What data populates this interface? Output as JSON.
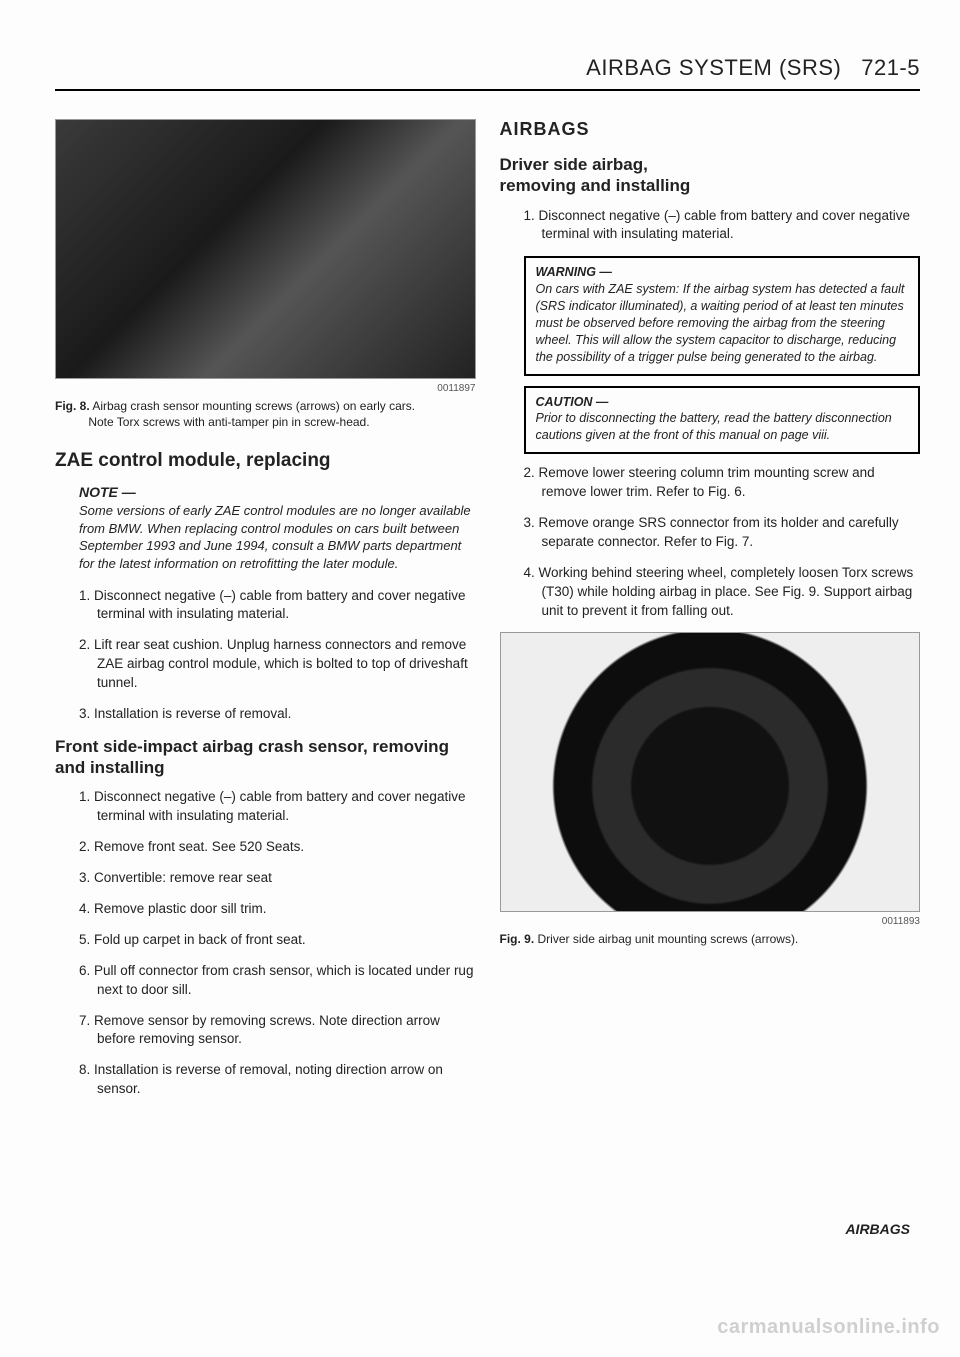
{
  "header": {
    "title": "AIRBAG SYSTEM (SRS)",
    "page": "721-5"
  },
  "left": {
    "fig8": {
      "id": "0011897",
      "label": "Fig. 8.",
      "caption_main": "Airbag crash sensor mounting screws (arrows) on early cars.",
      "caption_sub": "Note Torx screws with anti-tamper pin in screw-head."
    },
    "zae_heading": "ZAE control module, replacing",
    "note_label": "NOTE —",
    "note_body": "Some versions of early ZAE control modules are no longer available from BMW. When replacing control modules on cars built between September 1993 and June 1994, consult a BMW parts department for the latest information on retrofitting the later module.",
    "zae_steps": [
      "1. Disconnect negative (–) cable from battery and cover negative terminal with insulating material.",
      "2. Lift rear seat cushion. Unplug harness connectors and remove ZAE airbag control module, which is bolted to top of driveshaft tunnel.",
      "3. Installation is reverse of removal."
    ],
    "crash_heading": "Front side-impact airbag crash sensor, removing and installing",
    "crash_steps": [
      "1. Disconnect negative (–) cable from battery and cover negative terminal with insulating material.",
      "2. Remove front seat. See 520 Seats.",
      "3. Convertible: remove rear seat",
      "4. Remove plastic door sill trim.",
      "5. Fold up carpet in back of front seat.",
      "6. Pull off connector from crash sensor, which is located under rug next to door sill.",
      "7. Remove sensor by removing screws. Note direction arrow before removing sensor.",
      "8. Installation is reverse of removal, noting direction arrow on sensor."
    ]
  },
  "right": {
    "airbags_label": "AIRBAGS",
    "driver_heading_l1": "Driver side airbag,",
    "driver_heading_l2": "removing and installing",
    "step1": "1. Disconnect negative (–) cable from battery and cover negative terminal with insulating material.",
    "warning": {
      "title": "WARNING —",
      "body": "On cars with ZAE system: If the airbag system has detected a fault (SRS indicator illuminated), a waiting period of at least ten minutes must be observed before removing the airbag from the steering wheel. This will allow the system capacitor to discharge, reducing the possibility of a trigger pulse being generated to the airbag."
    },
    "caution": {
      "title": "CAUTION —",
      "body": "Prior to disconnecting the battery, read the battery disconnection cautions given at the front of this manual on page viii."
    },
    "steps_rest": [
      "2. Remove lower steering column trim mounting screw and remove lower trim. Refer to Fig. 6.",
      "3. Remove orange SRS connector from its holder and carefully separate connector. Refer to Fig. 7.",
      "4. Working behind steering wheel, completely loosen Torx screws (T30) while holding airbag in place. See Fig. 9. Support airbag unit to prevent it from falling out."
    ],
    "fig9": {
      "id": "0011893",
      "label": "Fig. 9.",
      "caption": "Driver side airbag unit mounting screws (arrows)."
    }
  },
  "footer": {
    "right": "AIRBAGS"
  },
  "watermark": "carmanualsonline.info"
}
